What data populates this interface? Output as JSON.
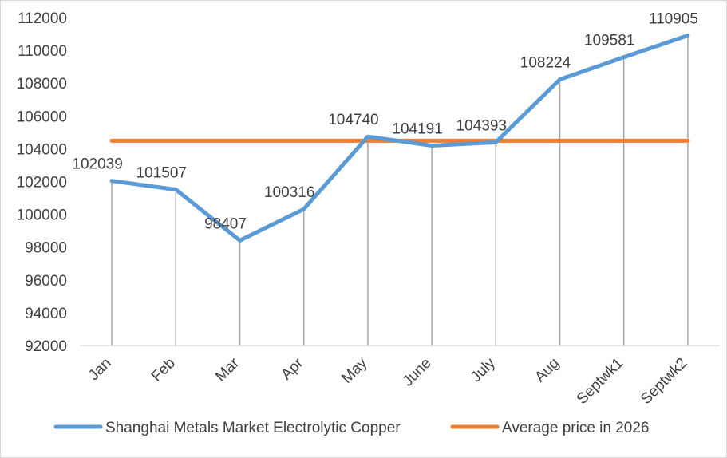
{
  "chart_data": {
    "type": "line",
    "categories": [
      "Jan",
      "Feb",
      "Mar",
      "Apr",
      "May",
      "June",
      "July",
      "Aug",
      "Septwk1",
      "Septwk2"
    ],
    "series": [
      {
        "name": "Shanghai Metals Market Electrolytic Copper",
        "color": "#5b9bd5",
        "values": [
          102039,
          101507,
          98407,
          100316,
          104740,
          104191,
          104393,
          108224,
          109581,
          110905
        ],
        "labels": [
          "102039",
          "101507",
          "98407",
          "100316",
          "104740",
          "104191",
          "104393",
          "108224",
          "109581",
          "110905"
        ]
      },
      {
        "name": "Average price in 2026",
        "color": "#ed7d31",
        "values": [
          104490,
          104490,
          104490,
          104490,
          104490,
          104490,
          104490,
          104490,
          104490,
          104490
        ]
      }
    ],
    "ylim": [
      92000,
      112000
    ],
    "yticks": [
      92000,
      94000,
      96000,
      98000,
      100000,
      102000,
      104000,
      106000,
      108000,
      110000,
      112000
    ],
    "ytick_labels": [
      "92000",
      "94000",
      "96000",
      "98000",
      "100000",
      "102000",
      "104000",
      "106000",
      "108000",
      "110000",
      "112000"
    ],
    "title": "",
    "xlabel": "",
    "ylabel": "",
    "drop_lines": true,
    "legend_position": "bottom"
  }
}
